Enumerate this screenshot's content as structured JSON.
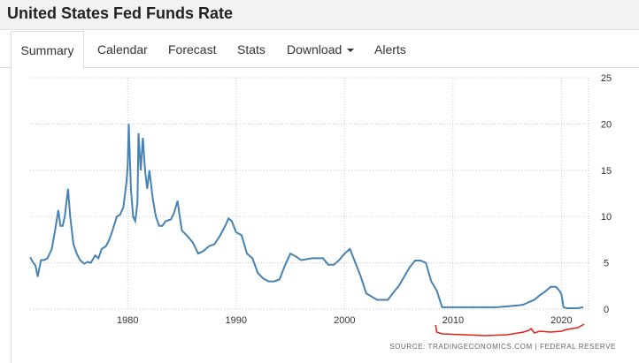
{
  "page": {
    "title": "United States Fed Funds Rate"
  },
  "tabs": [
    {
      "label": "Summary",
      "active": true
    },
    {
      "label": "Calendar"
    },
    {
      "label": "Forecast"
    },
    {
      "label": "Stats"
    },
    {
      "label": "Download",
      "dropdown": true
    },
    {
      "label": "Alerts"
    }
  ],
  "source_text": "SOURCE: TRADINGECONOMICS.COM  |  FEDERAL RESERVE",
  "colors": {
    "series_line": "#4682b4",
    "annotation": "#e0201a",
    "grid": "#c8c8c8"
  },
  "chart_data": {
    "type": "line",
    "title": "",
    "xlabel": "",
    "ylabel": "",
    "xlim": [
      1971,
      2022.5
    ],
    "ylim": [
      0,
      25
    ],
    "x_ticks": [
      "1980",
      "1990",
      "2000",
      "2010",
      "2020"
    ],
    "y_ticks": [
      "0",
      "5",
      "10",
      "15",
      "20",
      "25"
    ],
    "y_axis_position": "right",
    "grid": "dotted",
    "series": [
      {
        "x": [
          1971.0,
          1971.3,
          1971.5,
          1971.7,
          1972.0,
          1972.3,
          1972.6,
          1973.0,
          1973.3,
          1973.6,
          1973.8,
          1974.0,
          1974.2,
          1974.5,
          1974.7,
          1975.0,
          1975.3,
          1975.6,
          1976.0,
          1976.3,
          1976.6,
          1977.0,
          1977.3,
          1977.6,
          1978.0,
          1978.3,
          1978.6,
          1979.0,
          1979.3,
          1979.6,
          1979.9,
          1980.0,
          1980.1,
          1980.3,
          1980.5,
          1980.7,
          1980.9,
          1981.0,
          1981.2,
          1981.4,
          1981.6,
          1981.8,
          1982.0,
          1982.3,
          1982.6,
          1982.9,
          1983.2,
          1983.5,
          1984.0,
          1984.3,
          1984.6,
          1984.8,
          1985.0,
          1985.5,
          1986.0,
          1986.5,
          1987.0,
          1987.5,
          1988.0,
          1988.5,
          1989.0,
          1989.3,
          1989.6,
          1990.0,
          1990.5,
          1991.0,
          1991.5,
          1992.0,
          1992.5,
          1993.0,
          1993.5,
          1994.0,
          1994.5,
          1995.0,
          1995.5,
          1996.0,
          1997.0,
          1998.0,
          1998.5,
          1999.0,
          1999.5,
          2000.0,
          2000.5,
          2001.0,
          2001.5,
          2002.0,
          2003.0,
          2003.5,
          2004.0,
          2004.5,
          2005.0,
          2005.5,
          2006.0,
          2006.5,
          2007.0,
          2007.5,
          2008.0,
          2008.5,
          2009.0,
          2010.0,
          2011.0,
          2012.0,
          2013.0,
          2014.0,
          2015.0,
          2016.0,
          2016.5,
          2017.0,
          2017.5,
          2018.0,
          2018.5,
          2019.0,
          2019.5,
          2019.8,
          2020.0,
          2020.2,
          2020.5,
          2021.0,
          2021.5,
          2022.0
        ],
        "values": [
          5.6,
          5.0,
          4.7,
          3.5,
          5.3,
          5.3,
          5.5,
          6.5,
          8.5,
          10.7,
          9.0,
          9.0,
          10.0,
          13.0,
          10.0,
          7.0,
          6.0,
          5.3,
          4.9,
          5.1,
          5.0,
          5.8,
          5.5,
          6.5,
          6.8,
          7.5,
          8.5,
          10.0,
          10.2,
          11.0,
          13.8,
          15.5,
          20.0,
          13.0,
          10.0,
          9.5,
          11.5,
          19.0,
          15.0,
          18.5,
          15.0,
          13.0,
          15.0,
          12.0,
          10.0,
          9.0,
          9.0,
          9.5,
          9.7,
          10.5,
          11.7,
          10.0,
          8.5,
          7.9,
          7.2,
          6.0,
          6.3,
          6.8,
          7.0,
          7.9,
          9.0,
          9.8,
          9.5,
          8.3,
          8.0,
          6.0,
          5.5,
          3.9,
          3.3,
          3.0,
          3.0,
          3.2,
          4.7,
          6.0,
          5.7,
          5.3,
          5.5,
          5.5,
          4.8,
          4.8,
          5.3,
          6.0,
          6.5,
          5.0,
          3.5,
          1.7,
          1.0,
          1.0,
          1.0,
          1.8,
          2.5,
          3.5,
          4.5,
          5.25,
          5.25,
          5.0,
          3.0,
          2.0,
          0.2,
          0.2,
          0.2,
          0.2,
          0.2,
          0.2,
          0.3,
          0.4,
          0.5,
          0.75,
          1.0,
          1.5,
          1.9,
          2.4,
          2.4,
          2.0,
          1.6,
          0.2,
          0.1,
          0.1,
          0.1,
          0.2
        ]
      }
    ]
  }
}
